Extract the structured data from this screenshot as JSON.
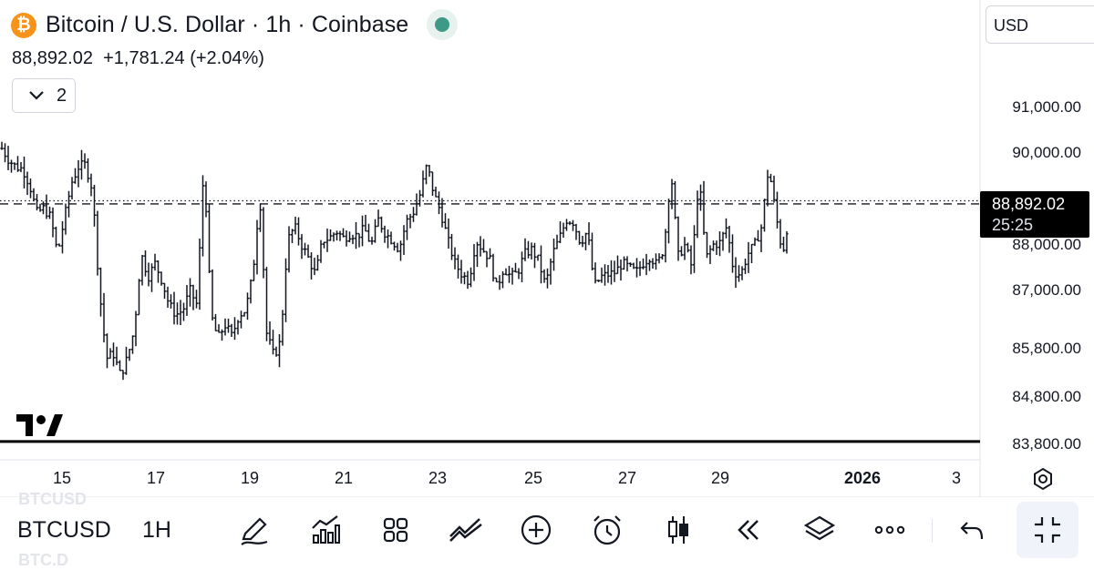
{
  "header": {
    "title": "Bitcoin / U.S. Dollar · 1h · Coinbase",
    "logo_glyph": "₿",
    "price": "88,892.02",
    "change": "+1,781.24 (+2.04%)",
    "indicator_count": "2",
    "logo_color": "#f7931a",
    "status_color": "#3e9a86"
  },
  "currency": "USD",
  "last_price_tag": {
    "price": "88,892.02",
    "countdown": "25:25"
  },
  "chart_data": {
    "type": "ohlc",
    "yticks": [
      "91,000.00",
      "90,000.00",
      "88,000.00",
      "87,000.00",
      "85,800.00",
      "84,800.00",
      "83,800.00"
    ],
    "xticks": [
      {
        "label": "15",
        "bold": false
      },
      {
        "label": "17",
        "bold": false
      },
      {
        "label": "19",
        "bold": false
      },
      {
        "label": "21",
        "bold": false
      },
      {
        "label": "23",
        "bold": false
      },
      {
        "label": "25",
        "bold": false
      },
      {
        "label": "27",
        "bold": false
      },
      {
        "label": "29",
        "bold": false
      },
      {
        "label": "2026",
        "bold": true
      },
      {
        "label": "3",
        "bold": false
      }
    ],
    "last_price": 88892.02,
    "ref_line_price": 88960,
    "low_line_price": 83860,
    "anchor_prices": [
      90100,
      89850,
      89700,
      89650,
      89300,
      88700,
      88800,
      88600,
      87800,
      88600,
      89350,
      89700,
      89750,
      89200,
      87000,
      85600,
      85700,
      85250,
      85600,
      86200,
      87800,
      87300,
      87600,
      87200,
      86700,
      86500,
      86600,
      87000,
      86700,
      89800,
      86500,
      86000,
      86300,
      86050,
      86500,
      86600,
      87350,
      89100,
      86100,
      85650,
      85950,
      88100,
      88400,
      88000,
      87700,
      87350,
      88100,
      88150,
      88300,
      88150,
      88250,
      88200,
      88350,
      88000,
      88550,
      88250,
      88100,
      87900,
      88500,
      88700,
      89100,
      89750,
      89100,
      88700,
      88100,
      87600,
      87350,
      87200,
      88100,
      87900,
      87700,
      87050,
      87500,
      87300,
      87400,
      87800,
      87900,
      87650,
      87100,
      87800,
      88150,
      88550,
      88500,
      88050,
      88300,
      87100,
      87300,
      87350,
      87400,
      87600,
      87500,
      87400,
      87600,
      87750,
      87550,
      87950,
      89600,
      87750,
      88000,
      87500,
      89500,
      87700,
      88000,
      88050,
      88400,
      87400,
      87350,
      87800,
      88000,
      88400,
      89700,
      88700,
      87800,
      88700
    ]
  },
  "toolbar": {
    "symbol": "BTCUSD",
    "timeframe": "1H",
    "ghost_top": "BTCUSD",
    "ghost_bottom": "BTC.D",
    "tools": [
      "pencil-icon",
      "bar-chart-icon",
      "grid-icon",
      "trend-icon",
      "plus-circle-icon",
      "alarm-icon",
      "candles-icon",
      "rewind-icon",
      "layers-icon",
      "more-icon",
      "undo-icon",
      "minimize-icon"
    ]
  }
}
